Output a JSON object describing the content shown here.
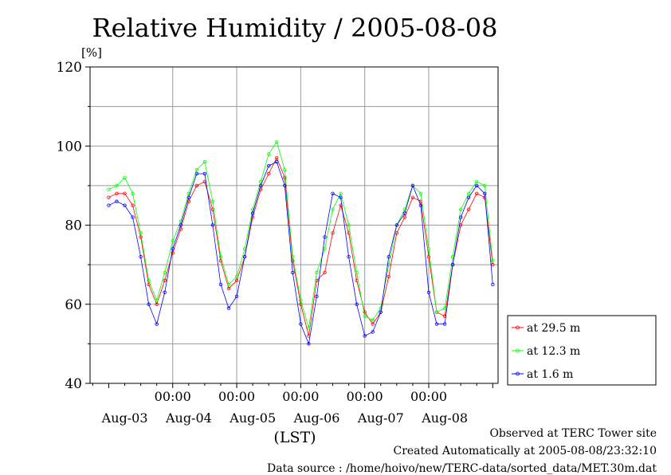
{
  "chart_data": {
    "type": "line",
    "title": "Relative Humidity / 2005-08-08",
    "ylabel": "[%]",
    "xlabel": "(LST)",
    "ylim": [
      40,
      120
    ],
    "yticks": [
      40,
      60,
      80,
      100,
      120
    ],
    "x_time_labels": [
      "00:00",
      "00:00",
      "00:00",
      "00:00",
      "00:00"
    ],
    "x_date_labels": [
      "Aug-03",
      "Aug-04",
      "Aug-05",
      "Aug-06",
      "Aug-07",
      "Aug-08"
    ],
    "grid": true,
    "legend_position": "right",
    "series": [
      {
        "name": "at 29.5 m",
        "color": "#ff0000",
        "x_hours": [
          0,
          3,
          6,
          9,
          12,
          15,
          18,
          21,
          24,
          27,
          30,
          33,
          36,
          39,
          42,
          45,
          48,
          51,
          54,
          57,
          60,
          63,
          66,
          69,
          72,
          75,
          78,
          81,
          84,
          87,
          90,
          93,
          96,
          99,
          102,
          105,
          108,
          111,
          114,
          117,
          120,
          123,
          126,
          129,
          132,
          135,
          138,
          141,
          144
        ],
        "values": [
          87,
          88,
          88,
          85,
          77,
          65,
          60,
          66,
          73,
          79,
          86,
          90,
          91,
          84,
          71,
          64,
          66,
          72,
          82,
          89,
          93,
          97,
          92,
          71,
          60,
          52,
          66,
          68,
          78,
          85,
          78,
          66,
          58,
          55,
          58,
          67,
          78,
          82,
          87,
          86,
          72,
          58,
          57,
          70,
          80,
          84,
          88,
          87,
          70
        ]
      },
      {
        "name": "at 12.3 m",
        "color": "#00ff00",
        "x_hours": [
          0,
          3,
          6,
          9,
          12,
          15,
          18,
          21,
          24,
          27,
          30,
          33,
          36,
          39,
          42,
          45,
          48,
          51,
          54,
          57,
          60,
          63,
          66,
          69,
          72,
          75,
          78,
          81,
          84,
          87,
          90,
          93,
          96,
          99,
          102,
          105,
          108,
          111,
          114,
          117,
          120,
          123,
          126,
          129,
          132,
          135,
          138,
          141,
          144
        ],
        "values": [
          89,
          90,
          92,
          88,
          78,
          66,
          61,
          68,
          76,
          81,
          88,
          94,
          96,
          86,
          72,
          65,
          67,
          74,
          84,
          91,
          98,
          101,
          94,
          72,
          61,
          54,
          68,
          74,
          84,
          88,
          80,
          68,
          57,
          56,
          59,
          70,
          80,
          84,
          90,
          88,
          74,
          58,
          59,
          72,
          84,
          88,
          91,
          90,
          71
        ]
      },
      {
        "name": "at 1.6 m",
        "color": "#0000ff",
        "x_hours": [
          0,
          3,
          6,
          9,
          12,
          15,
          18,
          21,
          24,
          27,
          30,
          33,
          36,
          39,
          42,
          45,
          48,
          51,
          54,
          57,
          60,
          63,
          66,
          69,
          72,
          75,
          78,
          81,
          84,
          87,
          90,
          93,
          96,
          99,
          102,
          105,
          108,
          111,
          114,
          117,
          120,
          123,
          126,
          129,
          132,
          135,
          138,
          141,
          144
        ],
        "values": [
          85,
          86,
          85,
          82,
          72,
          60,
          55,
          63,
          74,
          80,
          87,
          93,
          93,
          80,
          65,
          59,
          62,
          72,
          83,
          90,
          95,
          96,
          90,
          68,
          55,
          50,
          62,
          77,
          88,
          87,
          72,
          60,
          52,
          53,
          58,
          72,
          80,
          83,
          90,
          85,
          63,
          55,
          55,
          70,
          82,
          87,
          90,
          88,
          65
        ]
      }
    ]
  },
  "footer": {
    "line1": "Observed at TERC Tower site",
    "line2": "Created Automatically at 2005-08-08/23:32:10",
    "line3": "Data source : /home/hoivo/new/TERC-data/sorted_data/MET.30m.dat"
  }
}
